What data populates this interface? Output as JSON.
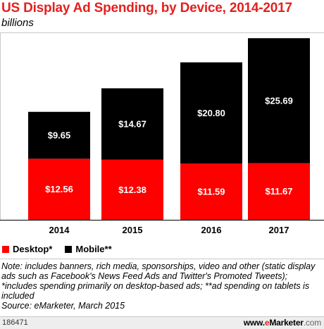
{
  "header": {
    "title": "US Display Ad Spending, by Device, 2014-2017",
    "subtitle": "billions"
  },
  "chart_data": {
    "type": "bar",
    "stacked": true,
    "title": "US Display Ad Spending, by Device, 2014-2017",
    "subtitle": "billions",
    "categories": [
      "2014",
      "2015",
      "2016",
      "2017"
    ],
    "series": [
      {
        "name": "Desktop*",
        "color": "#ff0000",
        "values": [
          12.56,
          12.38,
          11.59,
          11.67
        ],
        "labels": [
          "$12.56",
          "$12.38",
          "$11.59",
          "$11.67"
        ]
      },
      {
        "name": "Mobile**",
        "color": "#000000",
        "values": [
          9.65,
          14.67,
          20.8,
          25.69
        ],
        "labels": [
          "$9.65",
          "$14.67",
          "$20.80",
          "$25.69"
        ]
      }
    ],
    "grid": false,
    "legend_position": "bottom-left"
  },
  "legend": {
    "items": [
      {
        "label": "Desktop*",
        "color": "#ff0000"
      },
      {
        "label": "Mobile**",
        "color": "#000000"
      }
    ]
  },
  "note": {
    "text": "Note: includes banners, rich media, sponsorships, video and other (static display ads such as Facebook's News Feed Ads and Twitter's Promoted Tweets); *includes spending primarily on desktop-based ads; **ad spending on tablets is included",
    "source": "Source: eMarketer, March 2015"
  },
  "footer": {
    "id": "186471",
    "brand_prefix": "www.",
    "brand_accent": "e",
    "brand_rest": "Marketer",
    "brand_suffix": ".com"
  }
}
